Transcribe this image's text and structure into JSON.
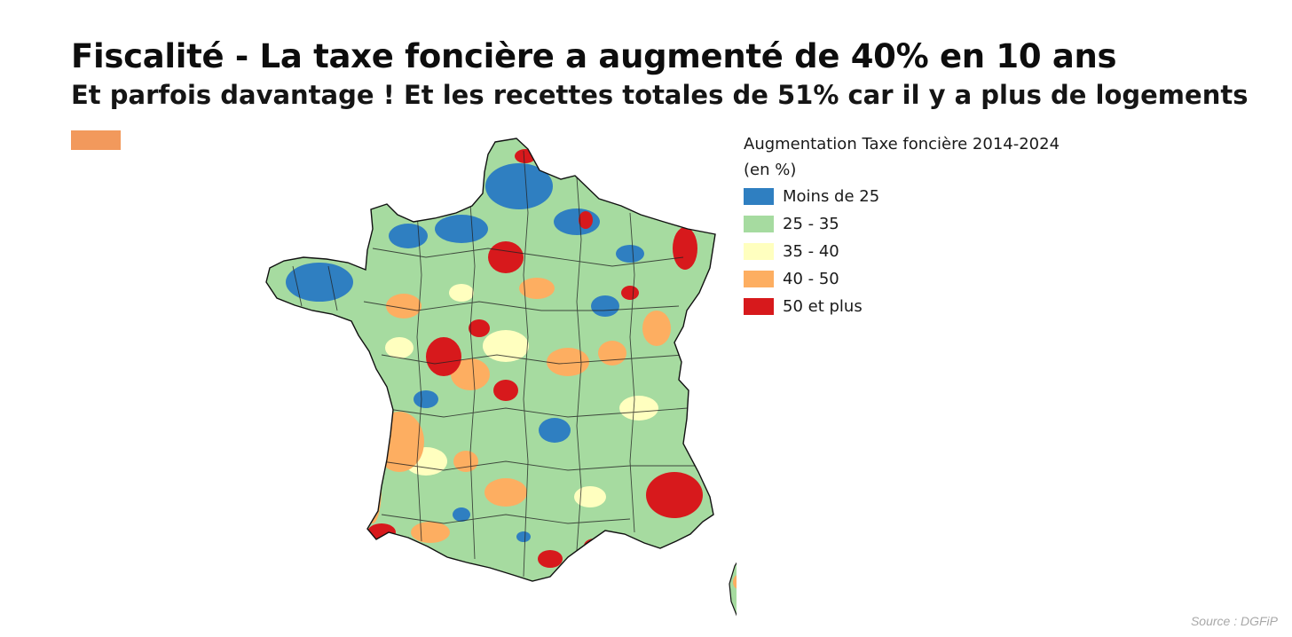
{
  "header": {
    "title": "Fiscalité - La taxe foncière a augmenté de 40% en 10 ans",
    "subtitle": "Et parfois davantage ! Et les recettes totales de 51% car il y a plus de logements",
    "accent_color": "#f2995c"
  },
  "legend": {
    "title_line1": "Augmentation Taxe foncière 2014-2024",
    "title_line2": "(en %)",
    "items": [
      {
        "label": "Moins de 25",
        "color": "#2f7fc1"
      },
      {
        "label": "25 - 35",
        "color": "#a6dba0"
      },
      {
        "label": "35 - 40",
        "color": "#ffffbf"
      },
      {
        "label": "40 - 50",
        "color": "#fdae61"
      },
      {
        "label": "50 et plus",
        "color": "#d7191c"
      }
    ]
  },
  "map": {
    "regions": [
      "France métropolitaine",
      "Corse"
    ]
  },
  "footer": {
    "source": "Source : DGFiP"
  }
}
